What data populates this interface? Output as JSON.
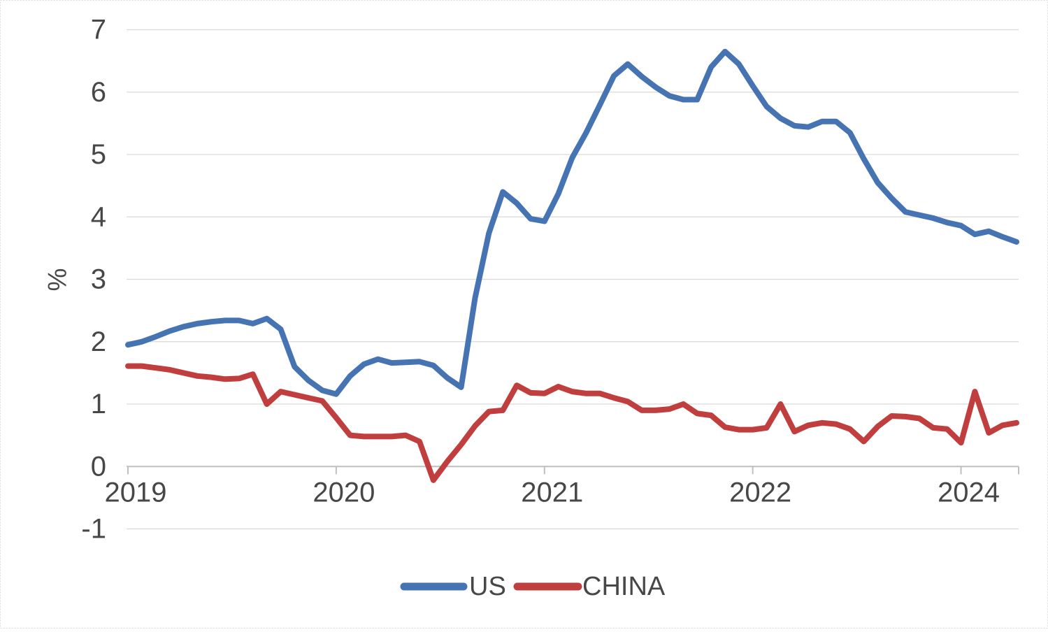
{
  "chart_data": {
    "type": "line",
    "title": "",
    "xlabel": "",
    "ylabel": "%",
    "ylim": [
      -1,
      7
    ],
    "y_ticks": [
      7,
      6,
      5,
      4,
      3,
      2,
      1,
      0,
      -1
    ],
    "x_tick_labels": [
      "2019",
      "2020",
      "2021",
      "2022",
      "2024"
    ],
    "x_tick_positions": [
      0,
      15,
      30,
      45,
      60
    ],
    "n_points": 65,
    "grid": "horizontal",
    "legend_position": "bottom-center",
    "series": [
      {
        "name": "US",
        "color": "#4673B2",
        "values": [
          1.95,
          2.0,
          2.08,
          2.17,
          2.24,
          2.29,
          2.32,
          2.34,
          2.34,
          2.29,
          2.37,
          2.2,
          1.6,
          1.38,
          1.22,
          1.16,
          1.45,
          1.64,
          1.72,
          1.66,
          1.67,
          1.68,
          1.62,
          1.42,
          1.27,
          2.7,
          3.74,
          4.4,
          4.22,
          3.97,
          3.93,
          4.37,
          4.95,
          5.35,
          5.8,
          6.26,
          6.45,
          6.25,
          6.08,
          5.94,
          5.88,
          5.88,
          6.4,
          6.65,
          6.45,
          6.1,
          5.77,
          5.58,
          5.46,
          5.44,
          5.53,
          5.53,
          5.35,
          4.93,
          4.55,
          4.3,
          4.08,
          4.03,
          3.98,
          3.91,
          3.86,
          3.72,
          3.77,
          3.68,
          3.6
        ]
      },
      {
        "name": "CHINA",
        "color": "#C03E3E",
        "values": [
          1.61,
          1.61,
          1.58,
          1.55,
          1.5,
          1.45,
          1.43,
          1.4,
          1.41,
          1.48,
          1.0,
          1.2,
          1.15,
          1.1,
          1.05,
          0.78,
          0.5,
          0.48,
          0.48,
          0.48,
          0.5,
          0.4,
          -0.22,
          0.08,
          0.35,
          0.65,
          0.88,
          0.9,
          1.3,
          1.18,
          1.17,
          1.28,
          1.2,
          1.17,
          1.17,
          1.1,
          1.04,
          0.9,
          0.9,
          0.92,
          1.0,
          0.85,
          0.82,
          0.63,
          0.59,
          0.59,
          0.62,
          1.0,
          0.56,
          0.66,
          0.7,
          0.68,
          0.6,
          0.4,
          0.64,
          0.81,
          0.8,
          0.77,
          0.62,
          0.6,
          0.38,
          1.2,
          0.54,
          0.66,
          0.7
        ]
      }
    ]
  },
  "colors": {
    "grid": "#D9D9D9",
    "axis": "#BFBFBF",
    "text": "#474747",
    "border": "#D9D9D9",
    "background": "#FFFFFF"
  }
}
